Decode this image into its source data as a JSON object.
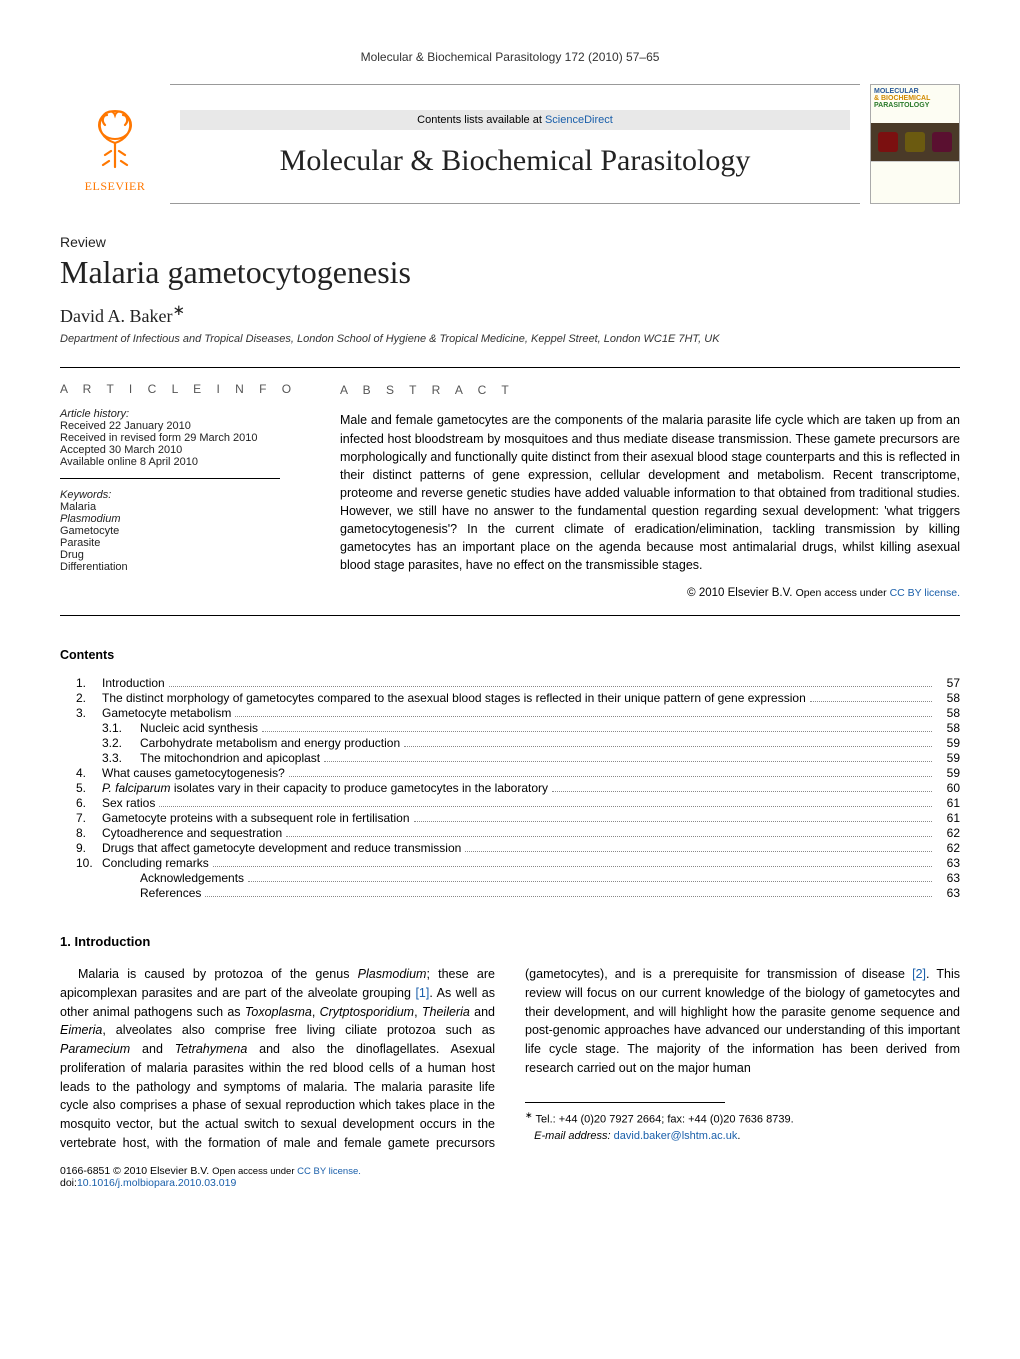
{
  "runningHead": "Molecular & Biochemical Parasitology 172 (2010) 57–65",
  "masthead": {
    "publisher": "ELSEVIER",
    "contentsPrefix": "Contents lists available at ",
    "contentsLink": "ScienceDirect",
    "journalTitle": "Molecular & Biochemical Parasitology",
    "coverLine1": "MOLECULAR",
    "coverLine2": "& BIOCHEMICAL",
    "coverLine3": "PARASITOLOGY"
  },
  "article": {
    "type": "Review",
    "title": "Malaria gametocytogenesis",
    "author": "David A. Baker",
    "authorSup": "∗",
    "affiliation": "Department of Infectious and Tropical Diseases, London School of Hygiene & Tropical Medicine, Keppel Street, London WC1E 7HT, UK"
  },
  "info": {
    "headingInfo": "A R T I C L E   I N F O",
    "historyLabel": "Article history:",
    "h1": "Received 22 January 2010",
    "h2": "Received in revised form 29 March 2010",
    "h3": "Accepted 30 March 2010",
    "h4": "Available online 8 April 2010",
    "kwLabel": "Keywords:",
    "kw": [
      "Malaria",
      "Plasmodium",
      "Gametocyte",
      "Parasite",
      "Drug",
      "Differentiation"
    ]
  },
  "abstract": {
    "heading": "A B S T R A C T",
    "text": "Male and female gametocytes are the components of the malaria parasite life cycle which are taken up from an infected host bloodstream by mosquitoes and thus mediate disease transmission. These gamete precursors are morphologically and functionally quite distinct from their asexual blood stage counterparts and this is reflected in their distinct patterns of gene expression, cellular development and metabolism. Recent transcriptome, proteome and reverse genetic studies have added valuable information to that obtained from traditional studies. However, we still have no answer to the fundamental question regarding sexual development: 'what triggers gametocytogenesis'? In the current climate of eradication/elimination, tackling transmission by killing gametocytes has an important place on the agenda because most antimalarial drugs, whilst killing asexual blood stage parasites, have no effect on the transmissible stages.",
    "copyPrefix": "© 2010 Elsevier B.V. ",
    "copyOpen": "Open access under ",
    "copyLink": "CC BY license."
  },
  "contentsHeading": "Contents",
  "toc": [
    {
      "n": "1.",
      "t": "Introduction",
      "p": "57"
    },
    {
      "n": "2.",
      "t": "The distinct morphology of gametocytes compared to the asexual blood stages is reflected in their unique pattern of gene expression",
      "p": "58"
    },
    {
      "n": "3.",
      "t": "Gametocyte metabolism",
      "p": "58"
    },
    {
      "n": "3.1.",
      "t": "Nucleic acid synthesis",
      "p": "58",
      "sub": true
    },
    {
      "n": "3.2.",
      "t": "Carbohydrate metabolism and energy production",
      "p": "59",
      "sub": true
    },
    {
      "n": "3.3.",
      "t": "The mitochondrion and apicoplast",
      "p": "59",
      "sub": true
    },
    {
      "n": "4.",
      "t": "What causes gametocytogenesis?",
      "p": "59"
    },
    {
      "n": "5.",
      "t": "P. falciparum isolates vary in their capacity to produce gametocytes in the laboratory",
      "p": "60",
      "italic": "P. falciparum"
    },
    {
      "n": "6.",
      "t": "Sex ratios",
      "p": "61"
    },
    {
      "n": "7.",
      "t": "Gametocyte proteins with a subsequent role in fertilisation",
      "p": "61"
    },
    {
      "n": "8.",
      "t": "Cytoadherence and sequestration",
      "p": "62"
    },
    {
      "n": "9.",
      "t": "Drugs that affect gametocyte development and reduce transmission",
      "p": "62"
    },
    {
      "n": "10.",
      "t": "Concluding remarks",
      "p": "63"
    },
    {
      "n": "",
      "t": "Acknowledgements",
      "p": "63",
      "unnumbered": true
    },
    {
      "n": "",
      "t": "References",
      "p": "63",
      "unnumbered": true
    }
  ],
  "section1": {
    "heading": "1.  Introduction",
    "p1a": "Malaria is caused by protozoa of the genus ",
    "p1b": "Plasmodium",
    "p1c": "; these are apicomplexan parasites and are part of the alveolate grouping ",
    "ref1": "[1]",
    "p1d": ". As well as other animal pathogens such as ",
    "sp1": "Toxoplasma",
    "p1e": ", ",
    "sp2": "Crytptosporidium",
    "p1f": ", ",
    "sp3": "Theileria",
    "p1g": " and ",
    "sp4": "Eimeria",
    "p1h": ", alveolates also comprise free living ciliate protozoa such as ",
    "sp5": "Paramecium",
    "p1i": " and ",
    "sp6": "Tetrahymena",
    "p1j": " and also the dinoflagellates. Asexual proliferation of malaria",
    "p2a": "parasites within the red blood cells of a human host leads to the pathology and symptoms of malaria. The malaria parasite life cycle also comprises a phase of sexual reproduction which takes place in the mosquito vector, but the actual switch to sexual development occurs in the vertebrate host, with the formation of male and female gamete precursors (gametocytes), and is a prerequisite for transmission of disease ",
    "ref2": "[2]",
    "p2b": ". This review will focus on our current knowledge of the biology of gametocytes and their development, and will highlight how the parasite genome sequence and post-genomic approaches have advanced our understanding of this important life cycle stage. The majority of the information has been derived from research carried out on the major human"
  },
  "footnotes": {
    "sup": "∗",
    "tel": " Tel.: +44 (0)20 7927 2664; fax: +44 (0)20 7636 8739.",
    "emailLabel": "E-mail address: ",
    "email": "david.baker@lshtm.ac.uk",
    "emailDot": "."
  },
  "footer": {
    "issnPrefix": "0166-6851 © 2010 Elsevier B.V. ",
    "openPrefix": "Open access under ",
    "openLink": "CC BY license.",
    "doiLabel": "doi:",
    "doi": "10.1016/j.molbiopara.2010.03.019"
  },
  "colors": {
    "elsevierOrange": "#ff7700",
    "linkBlue": "#1a5faa",
    "coverCell1": "#7b1010",
    "coverCell2": "#6b5a10",
    "coverCell3": "#5a1030"
  }
}
